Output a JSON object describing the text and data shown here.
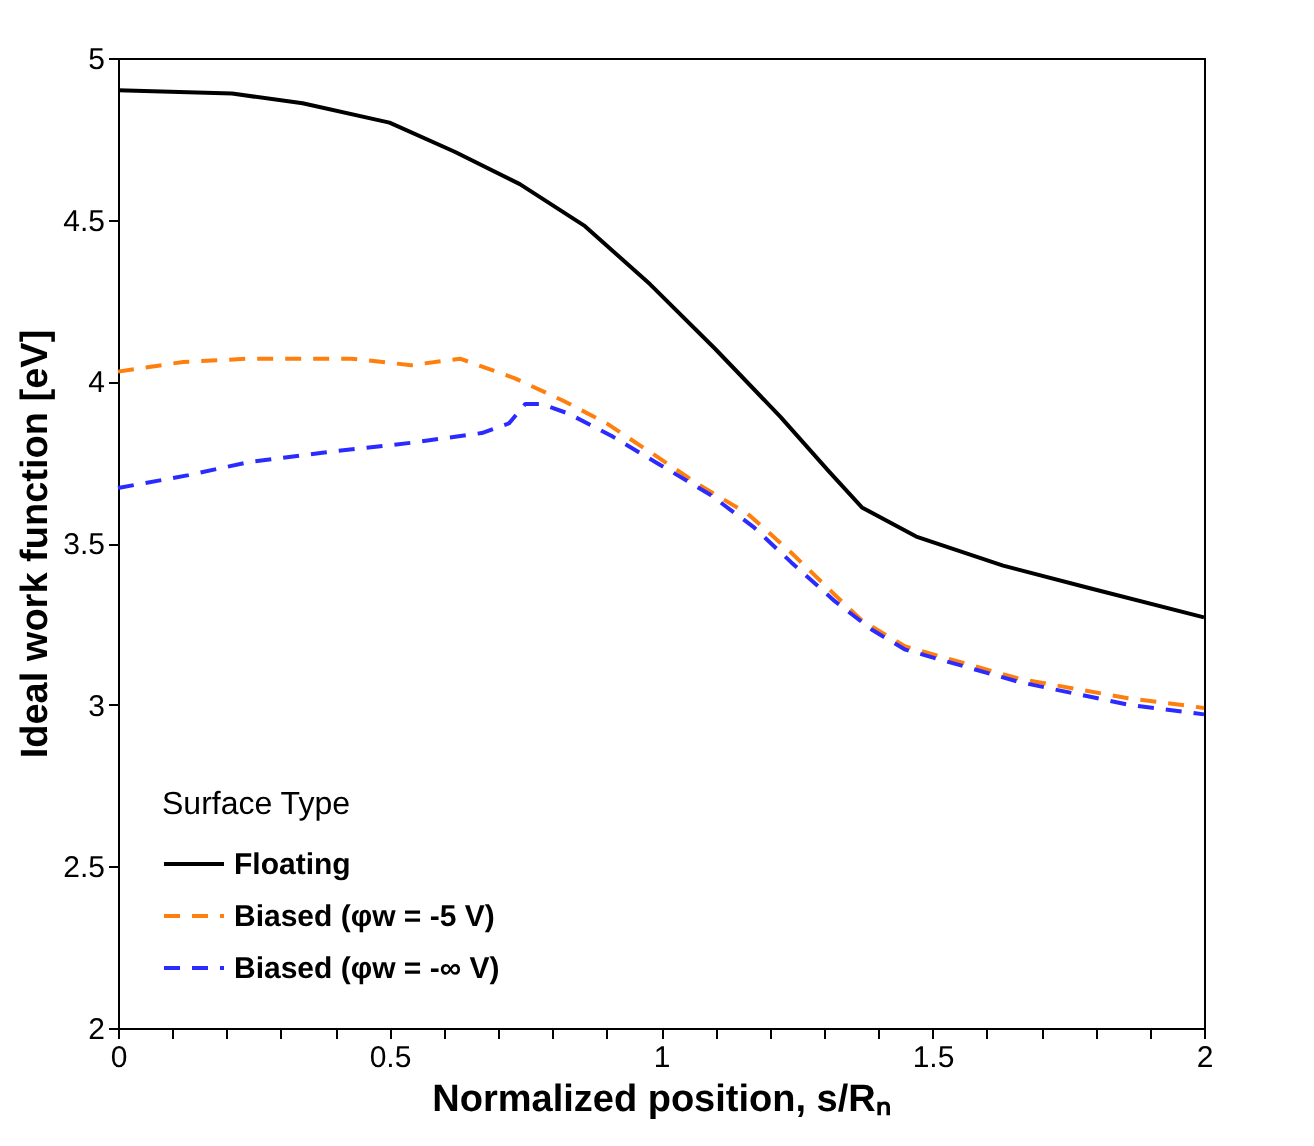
{
  "chart_data": {
    "type": "line",
    "xlabel": "Normalized position, s/Rₙ",
    "ylabel": "Ideal work function [eV]",
    "legend_title": "Surface Type",
    "legend": "bottom left",
    "grid": false,
    "marker": "none",
    "xlim": [
      0,
      2
    ],
    "ylim": [
      2,
      5
    ],
    "xticks": [
      0,
      {
        "value": 0.1,
        "label": null
      },
      {
        "value": 0.2,
        "label": null
      },
      {
        "value": 0.3,
        "label": null
      },
      {
        "value": 0.4,
        "label": null
      },
      0.5,
      {
        "value": 0.6,
        "label": null
      },
      {
        "value": 0.7,
        "label": null
      },
      {
        "value": 0.8,
        "label": null
      },
      {
        "value": 0.9,
        "label": null
      },
      1,
      {
        "value": 1.1,
        "label": null
      },
      {
        "value": 1.2,
        "label": null
      },
      {
        "value": 1.3,
        "label": null
      },
      {
        "value": 1.4,
        "label": null
      },
      1.5,
      {
        "value": 1.6,
        "label": null
      },
      {
        "value": 1.7,
        "label": null
      },
      {
        "value": 1.8,
        "label": null
      },
      {
        "value": 1.9,
        "label": null
      },
      2
    ],
    "yticks": [
      2,
      2.5,
      3,
      3.5,
      4,
      4.5,
      5
    ],
    "series": [
      {
        "name": "Floating",
        "color": "#000000",
        "line_style": "solid",
        "x": [
          0,
          0.21,
          0.34,
          0.5,
          0.62,
          0.74,
          0.86,
          0.98,
          1.1,
          1.22,
          1.31,
          1.37,
          1.47,
          1.63,
          1.79,
          2.0
        ],
        "values": [
          4.9,
          4.89,
          4.86,
          4.8,
          4.71,
          4.61,
          4.48,
          4.3,
          4.1,
          3.89,
          3.72,
          3.61,
          3.52,
          3.43,
          3.36,
          3.27
        ]
      },
      {
        "name": "Biased (φw = -5 V)",
        "color": "#ff7f0e",
        "line_style": "dashed",
        "x": [
          0,
          0.12,
          0.24,
          0.34,
          0.43,
          0.54,
          0.63,
          0.73,
          0.82,
          0.9,
          0.99,
          1.07,
          1.16,
          1.24,
          1.32,
          1.37,
          1.45,
          1.66,
          1.86,
          2.0
        ],
        "values": [
          4.03,
          4.06,
          4.07,
          4.07,
          4.07,
          4.05,
          4.07,
          4.01,
          3.94,
          3.87,
          3.77,
          3.68,
          3.59,
          3.47,
          3.34,
          3.26,
          3.18,
          3.08,
          3.02,
          2.99
        ]
      },
      {
        "name": "Biased (φw = -∞ V)",
        "color": "#2b2bff",
        "line_style": "dashed",
        "x": [
          0,
          0.13,
          0.24,
          0.38,
          0.54,
          0.67,
          0.72,
          0.75,
          0.78,
          0.83,
          0.91,
          0.99,
          1.09,
          1.17,
          1.24,
          1.32,
          1.39,
          1.45,
          1.66,
          1.86,
          2.0
        ],
        "values": [
          3.67,
          3.71,
          3.75,
          3.78,
          3.81,
          3.84,
          3.87,
          3.93,
          3.93,
          3.9,
          3.83,
          3.75,
          3.65,
          3.55,
          3.44,
          3.32,
          3.23,
          3.17,
          3.07,
          3.0,
          2.97
        ]
      }
    ]
  }
}
